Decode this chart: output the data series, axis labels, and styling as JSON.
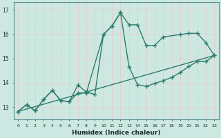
{
  "title": "",
  "xlabel": "Humidex (Indice chaleur)",
  "ylabel": "",
  "xlim": [
    -0.5,
    23.5
  ],
  "ylim": [
    12.5,
    17.3
  ],
  "yticks": [
    13,
    14,
    15,
    16,
    17
  ],
  "xticks": [
    0,
    1,
    2,
    3,
    4,
    5,
    6,
    7,
    8,
    9,
    10,
    11,
    12,
    13,
    14,
    15,
    16,
    17,
    18,
    19,
    20,
    21,
    22,
    23
  ],
  "bg_color": "#cce8e0",
  "grid_color": "#b0d8d0",
  "line_color": "#2e7b6e",
  "series1_x": [
    0,
    1,
    2,
    3,
    4,
    5,
    6,
    7,
    8,
    10,
    11,
    12,
    13,
    14,
    15,
    16,
    17,
    19,
    20,
    21,
    22,
    23
  ],
  "series1_y": [
    12.82,
    13.1,
    12.85,
    13.32,
    13.68,
    13.27,
    13.22,
    13.58,
    13.58,
    15.98,
    16.33,
    16.88,
    16.38,
    16.38,
    15.53,
    15.53,
    15.88,
    15.98,
    16.03,
    16.03,
    15.65,
    15.12
  ],
  "series2_x": [
    0,
    1,
    2,
    3,
    4,
    5,
    6,
    7,
    8,
    9,
    10,
    11,
    12,
    13,
    14,
    15,
    16,
    17,
    18,
    19,
    20,
    21,
    22,
    23
  ],
  "series2_y": [
    12.82,
    13.1,
    12.85,
    13.32,
    13.68,
    13.27,
    13.22,
    13.9,
    13.62,
    13.52,
    15.98,
    16.33,
    16.88,
    14.65,
    13.92,
    13.85,
    13.97,
    14.08,
    14.22,
    14.42,
    14.67,
    14.87,
    14.87,
    15.12
  ],
  "series3_x": [
    0,
    23
  ],
  "series3_y": [
    12.82,
    15.12
  ],
  "marker_size": 2.8,
  "line_width": 1.0
}
